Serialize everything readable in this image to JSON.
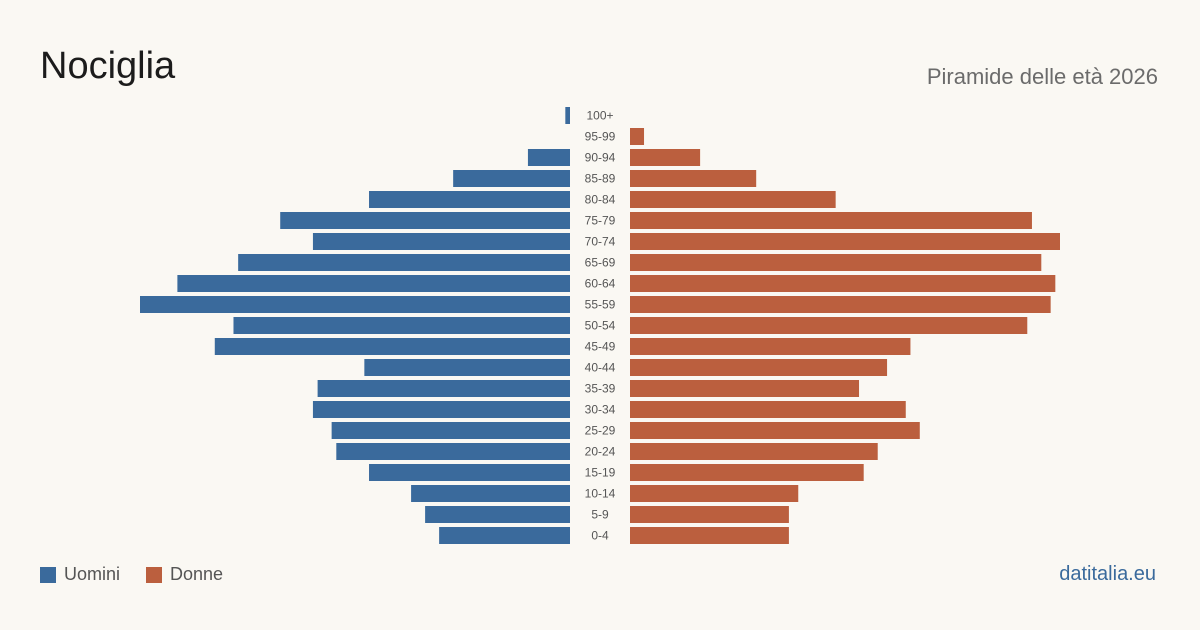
{
  "header": {
    "title": "Nociglia",
    "subtitle": "Piramide delle età 2026"
  },
  "legend": {
    "men_label": "Uomini",
    "women_label": "Donne"
  },
  "footer": {
    "site": "datitalia.eu"
  },
  "colors": {
    "men": "#3a6a9c",
    "women": "#bb5f3e",
    "background": "#faf8f3"
  },
  "chart_data": {
    "type": "bar",
    "orientation": "horizontal-pyramid",
    "categories": [
      "100+",
      "95-99",
      "90-94",
      "85-89",
      "80-84",
      "75-79",
      "70-74",
      "65-69",
      "60-64",
      "55-59",
      "50-54",
      "45-49",
      "40-44",
      "35-39",
      "30-34",
      "25-29",
      "20-24",
      "15-19",
      "10-14",
      "5-9",
      "0-4"
    ],
    "series": [
      {
        "name": "Uomini",
        "values": [
          1,
          0,
          9,
          25,
          43,
          62,
          55,
          71,
          84,
          92,
          72,
          76,
          44,
          54,
          55,
          51,
          50,
          43,
          34,
          31,
          28
        ]
      },
      {
        "name": "Donne",
        "values": [
          0,
          3,
          15,
          27,
          44,
          86,
          92,
          88,
          91,
          90,
          85,
          60,
          55,
          49,
          59,
          62,
          53,
          50,
          36,
          34,
          34
        ]
      }
    ],
    "xlim": [
      0,
      92
    ],
    "grid": false,
    "legend_position": "bottom-left"
  }
}
